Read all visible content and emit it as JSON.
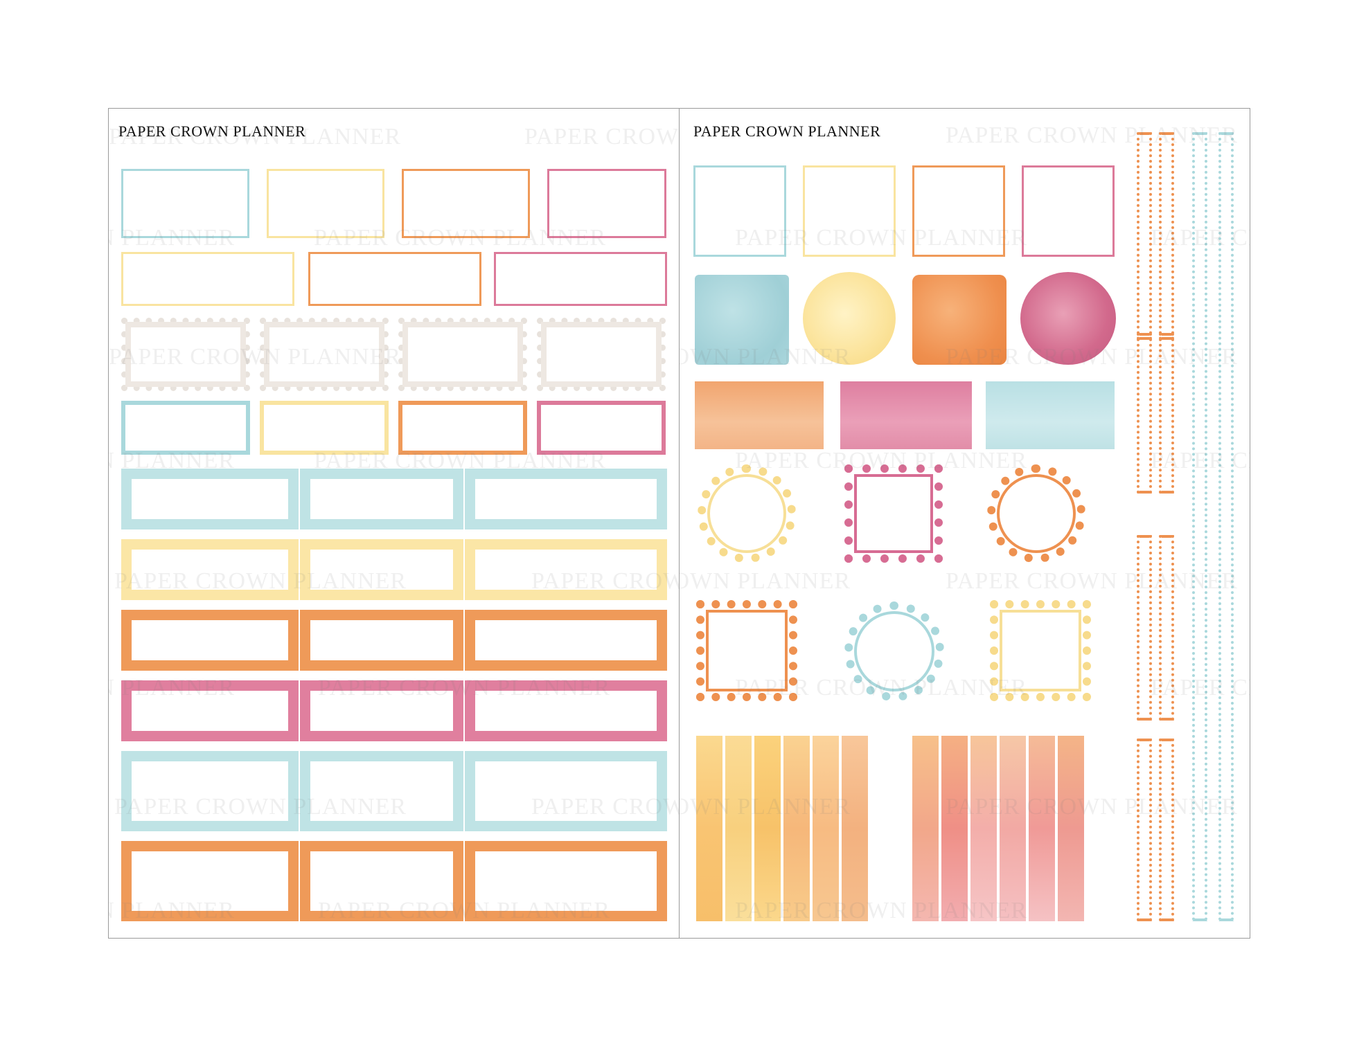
{
  "brand_text": "PAPER CROWN PLANNER",
  "watermark_text": "PAPER CROWN PLANNER",
  "left_sheet": {
    "brand": "PAPER CROWN PLANNER"
  },
  "right_sheet": {
    "brand": "PAPER CROWN PLANNER"
  },
  "colors": {
    "blue": "#a9d8dc",
    "yellow": "#f9e4a0",
    "orange": "#ef9a59",
    "pink": "#dc7a9a",
    "beige": "#ebe4de"
  }
}
